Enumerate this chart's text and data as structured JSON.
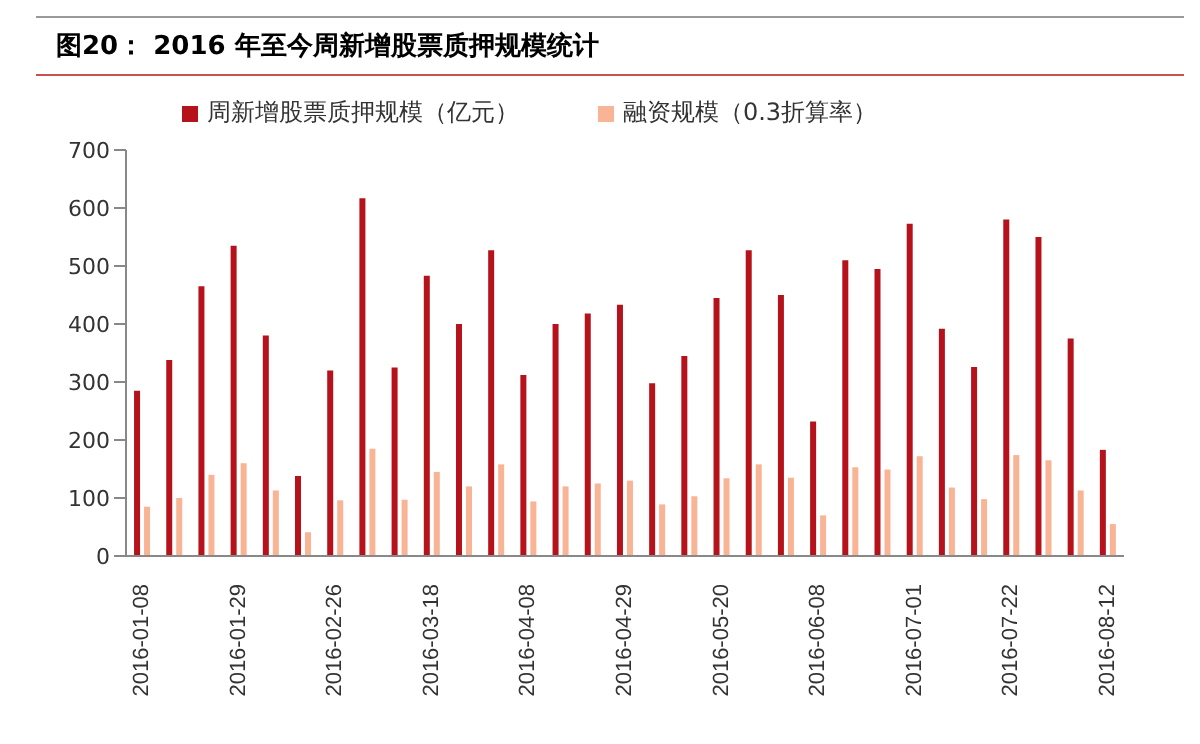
{
  "chart_data": {
    "type": "bar",
    "title": "图20：  2016 年至今周新增股票质押规模统计",
    "categories": [
      "2016-01-08",
      null,
      null,
      "2016-01-29",
      null,
      null,
      "2016-02-26",
      null,
      null,
      "2016-03-18",
      null,
      null,
      "2016-04-08",
      null,
      null,
      "2016-04-29",
      null,
      null,
      "2016-05-20",
      null,
      null,
      "2016-06-08",
      null,
      null,
      "2016-07-01",
      null,
      null,
      "2016-07-22",
      null,
      null,
      "2016-08-12"
    ],
    "series": [
      {
        "name": "周新增股票质押规模（亿元）",
        "color": "#b5121b",
        "values": [
          285,
          338,
          465,
          535,
          380,
          138,
          320,
          617,
          325,
          483,
          400,
          527,
          312,
          400,
          418,
          433,
          298,
          345,
          445,
          527,
          450,
          232,
          510,
          495,
          573,
          392,
          326,
          580,
          550,
          375,
          183
        ]
      },
      {
        "name": "融资规模（0.3折算率）",
        "color": "#f9b395",
        "values": [
          85,
          100,
          140,
          160,
          113,
          41,
          96,
          185,
          97,
          145,
          120,
          158,
          94,
          120,
          125,
          130,
          89,
          103,
          134,
          158,
          135,
          70,
          153,
          149,
          172,
          118,
          98,
          174,
          165,
          113,
          55
        ]
      }
    ],
    "ylim": [
      0,
      700
    ],
    "yticks": [
      0,
      100,
      200,
      300,
      400,
      500,
      600,
      700
    ],
    "grid": false,
    "legend": "top"
  }
}
